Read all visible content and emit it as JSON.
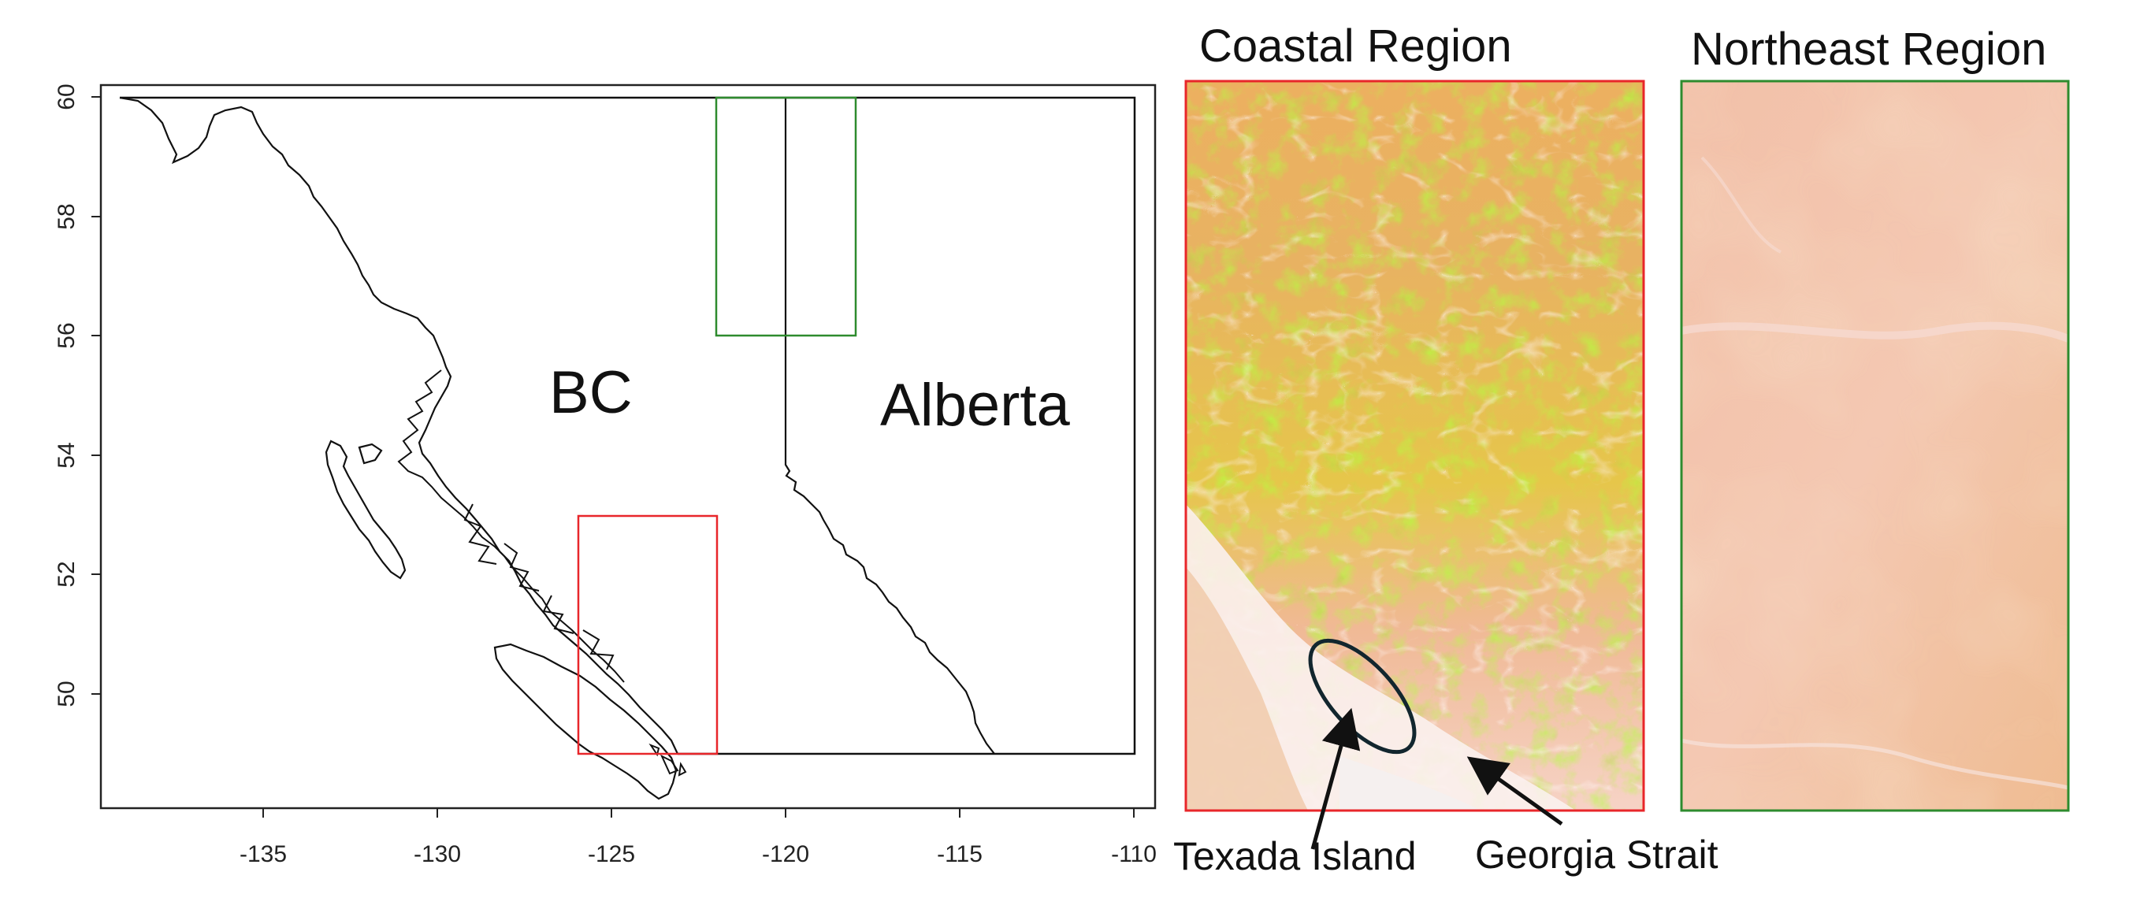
{
  "map_panel": {
    "x_ticks": [
      "-135",
      "-130",
      "-125",
      "-120",
      "-115",
      "-110"
    ],
    "y_ticks": [
      "50",
      "52",
      "54",
      "56",
      "58",
      "60"
    ],
    "labels": {
      "bc": "BC",
      "alberta": "Alberta"
    },
    "coastal_box_color": "#e8262a",
    "northeast_box_color": "#2e8b2e"
  },
  "coastal_panel": {
    "title": "Coastal Region",
    "border_color": "#e8262a",
    "ellipse_color": "#12262e"
  },
  "northeast_panel": {
    "title": "Northeast Region",
    "border_color": "#2e8b2e"
  },
  "annotations": {
    "texada": "Texada Island",
    "georgia": "Georgia Strait"
  },
  "elevation_colors": {
    "low": "#ffffff",
    "mid_low": "#f2b9a0",
    "mid": "#eab47e",
    "high": "#e7e61e",
    "peak": "#3fa82a"
  }
}
